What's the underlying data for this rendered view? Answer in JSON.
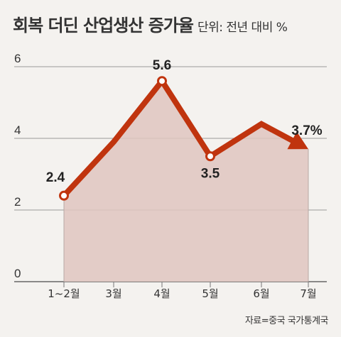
{
  "header": {
    "title": "회복 더딘 산업생산 증가율",
    "unit": "단위: 전년 대비 %"
  },
  "source": "자료=중국 국가통계국",
  "colors": {
    "line": "#c0340e",
    "area": "#dfc6c0",
    "grid": "#9a9a9a",
    "background": "#f4f2ef"
  },
  "chart_data": {
    "type": "line",
    "title": "회복 더딘 산업생산 증가율",
    "unit_label": "단위: 전년 대비 %",
    "categories": [
      "1~2월",
      "3월",
      "4월",
      "5월",
      "6월",
      "7월"
    ],
    "values": [
      2.4,
      3.9,
      5.6,
      3.5,
      4.4,
      3.7
    ],
    "data_labels": [
      {
        "index": 0,
        "text": "2.4"
      },
      {
        "index": 2,
        "text": "5.6"
      },
      {
        "index": 3,
        "text": "3.5"
      },
      {
        "index": 5,
        "text": "3.7%"
      }
    ],
    "marked_points": [
      0,
      2,
      3
    ],
    "yticks": [
      "0",
      "2",
      "4",
      "6"
    ],
    "ylim": [
      0,
      6
    ],
    "grid": true,
    "area_fill": true,
    "arrow_end": true
  }
}
